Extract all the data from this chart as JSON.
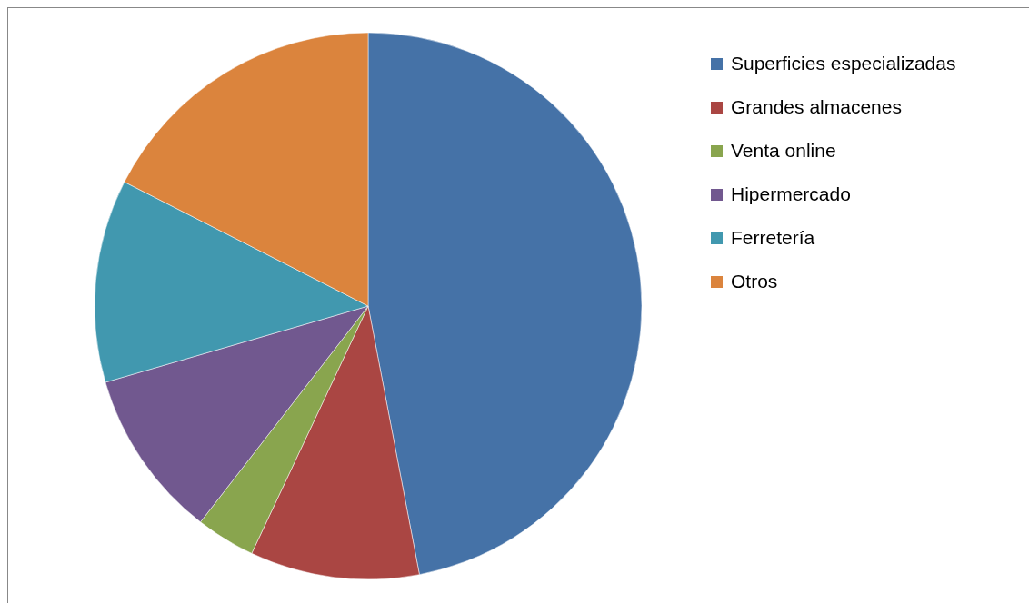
{
  "chart_data": {
    "type": "pie",
    "categories": [
      "Superficies especializadas",
      "Grandes almacenes",
      "Venta online",
      "Hipermercado",
      "Ferretería",
      "Otros"
    ],
    "values": [
      47,
      10,
      3.5,
      10,
      12,
      17.5
    ],
    "colors": [
      "#4572a7",
      "#aa4643",
      "#89a54e",
      "#71588f",
      "#4198af",
      "#db843d"
    ],
    "legend": "top right"
  }
}
